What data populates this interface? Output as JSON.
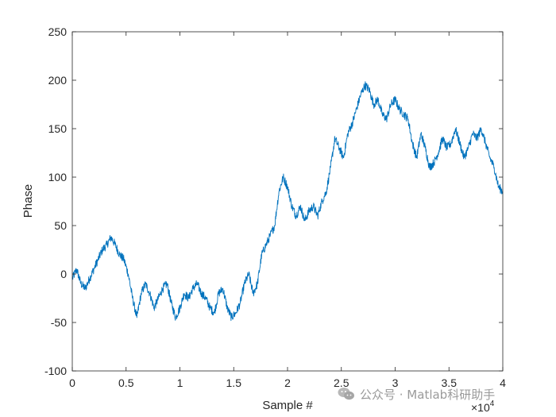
{
  "chart_data": {
    "type": "line",
    "title": "",
    "xlabel": "Sample #",
    "ylabel": "Phase",
    "x_exponent_label": "×10",
    "x_exponent_power": "4",
    "xlim": [
      0,
      40000
    ],
    "ylim": [
      -100,
      250
    ],
    "x_ticks": [
      0,
      5000,
      10000,
      15000,
      20000,
      25000,
      30000,
      35000,
      40000
    ],
    "x_tick_labels": [
      "0",
      "0.5",
      "1",
      "1.5",
      "2",
      "2.5",
      "3",
      "3.5",
      "4"
    ],
    "y_ticks": [
      -100,
      -50,
      0,
      50,
      100,
      150,
      200,
      250
    ],
    "y_tick_labels": [
      "-100",
      "-50",
      "0",
      "50",
      "100",
      "150",
      "200",
      "250"
    ],
    "grid": false,
    "series": [
      {
        "color": "#0072BD",
        "x": [
          0,
          400,
          800,
          1200,
          1600,
          2000,
          2400,
          2800,
          3200,
          3600,
          4000,
          4400,
          4800,
          5200,
          5600,
          6000,
          6400,
          6800,
          7200,
          7600,
          8000,
          8400,
          8800,
          9200,
          9600,
          10000,
          10400,
          10800,
          11200,
          11600,
          12000,
          12400,
          12800,
          13200,
          13600,
          14000,
          14400,
          14800,
          15200,
          15600,
          16000,
          16400,
          16800,
          17200,
          17600,
          18000,
          18400,
          18800,
          19200,
          19600,
          20000,
          20400,
          20800,
          21200,
          21600,
          22000,
          22400,
          22800,
          23200,
          23600,
          24000,
          24400,
          24800,
          25200,
          25600,
          26000,
          26400,
          26800,
          27200,
          27600,
          28000,
          28400,
          28800,
          29200,
          29600,
          30000,
          30400,
          30800,
          31200,
          31600,
          32000,
          32400,
          32800,
          33200,
          33600,
          34000,
          34400,
          34800,
          35200,
          35600,
          36000,
          36400,
          36800,
          37200,
          37600,
          38000,
          38400,
          38800,
          39200,
          39600,
          40000
        ],
        "y": [
          -5,
          5,
          -10,
          -15,
          -5,
          5,
          15,
          25,
          30,
          38,
          30,
          20,
          15,
          0,
          -25,
          -45,
          -20,
          -10,
          -20,
          -35,
          -25,
          -15,
          -10,
          -30,
          -45,
          -35,
          -20,
          -25,
          -15,
          -10,
          -20,
          -25,
          -35,
          -40,
          -20,
          -15,
          -35,
          -45,
          -40,
          -30,
          -10,
          0,
          -20,
          -10,
          20,
          30,
          40,
          50,
          85,
          100,
          90,
          70,
          60,
          70,
          55,
          65,
          70,
          60,
          75,
          85,
          110,
          140,
          130,
          120,
          145,
          155,
          170,
          185,
          195,
          190,
          175,
          180,
          165,
          160,
          175,
          180,
          170,
          165,
          160,
          135,
          120,
          145,
          130,
          110,
          115,
          125,
          140,
          130,
          135,
          150,
          135,
          120,
          130,
          145,
          140,
          150,
          135,
          120,
          110,
          90,
          85
        ]
      }
    ]
  },
  "watermark": {
    "text": "公众号 · Matlab科研助手"
  }
}
